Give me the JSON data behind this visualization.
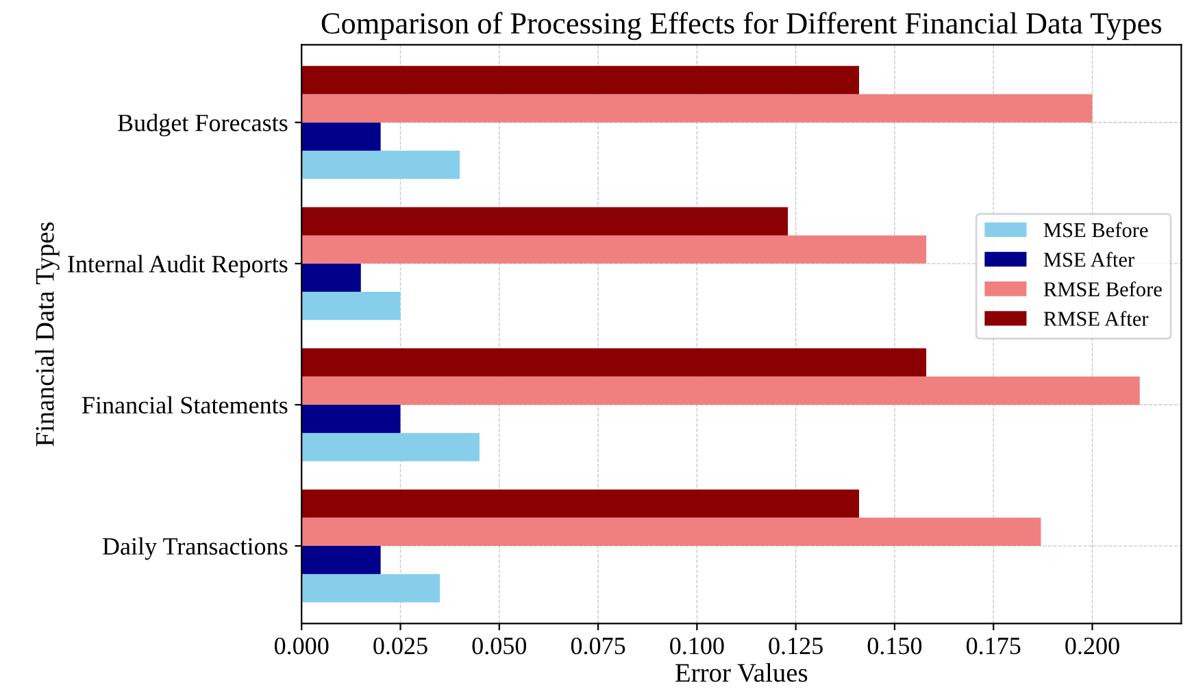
{
  "chart_data": {
    "type": "bar",
    "orientation": "horizontal",
    "title": "Comparison of Processing Effects for Different Financial Data Types",
    "xlabel": "Error Values",
    "ylabel": "Financial Data Types",
    "categories": [
      "Budget Forecasts",
      "Internal Audit Reports",
      "Financial Statements",
      "Daily Transactions"
    ],
    "series": [
      {
        "name": "MSE Before",
        "color": "#87ceeb",
        "values": [
          0.04,
          0.025,
          0.045,
          0.035
        ]
      },
      {
        "name": "MSE After",
        "color": "#00008b",
        "values": [
          0.02,
          0.015,
          0.025,
          0.02
        ]
      },
      {
        "name": "RMSE Before",
        "color": "#f08080",
        "values": [
          0.2,
          0.158,
          0.212,
          0.187
        ]
      },
      {
        "name": "RMSE After",
        "color": "#8b0000",
        "values": [
          0.141,
          0.123,
          0.158,
          0.141
        ]
      }
    ],
    "xlim": [
      0,
      0.2225
    ],
    "xticks": [
      {
        "value": 0,
        "label": "0.000"
      },
      {
        "value": 0.025,
        "label": "0.025"
      },
      {
        "value": 0.05,
        "label": "0.050"
      },
      {
        "value": 0.075,
        "label": "0.075"
      },
      {
        "value": 0.1,
        "label": "0.100"
      },
      {
        "value": 0.125,
        "label": "0.125"
      },
      {
        "value": 0.15,
        "label": "0.150"
      },
      {
        "value": 0.175,
        "label": "0.175"
      },
      {
        "value": 0.2,
        "label": "0.200"
      }
    ],
    "grid": true,
    "line_style": "dashed",
    "legend": "right"
  }
}
